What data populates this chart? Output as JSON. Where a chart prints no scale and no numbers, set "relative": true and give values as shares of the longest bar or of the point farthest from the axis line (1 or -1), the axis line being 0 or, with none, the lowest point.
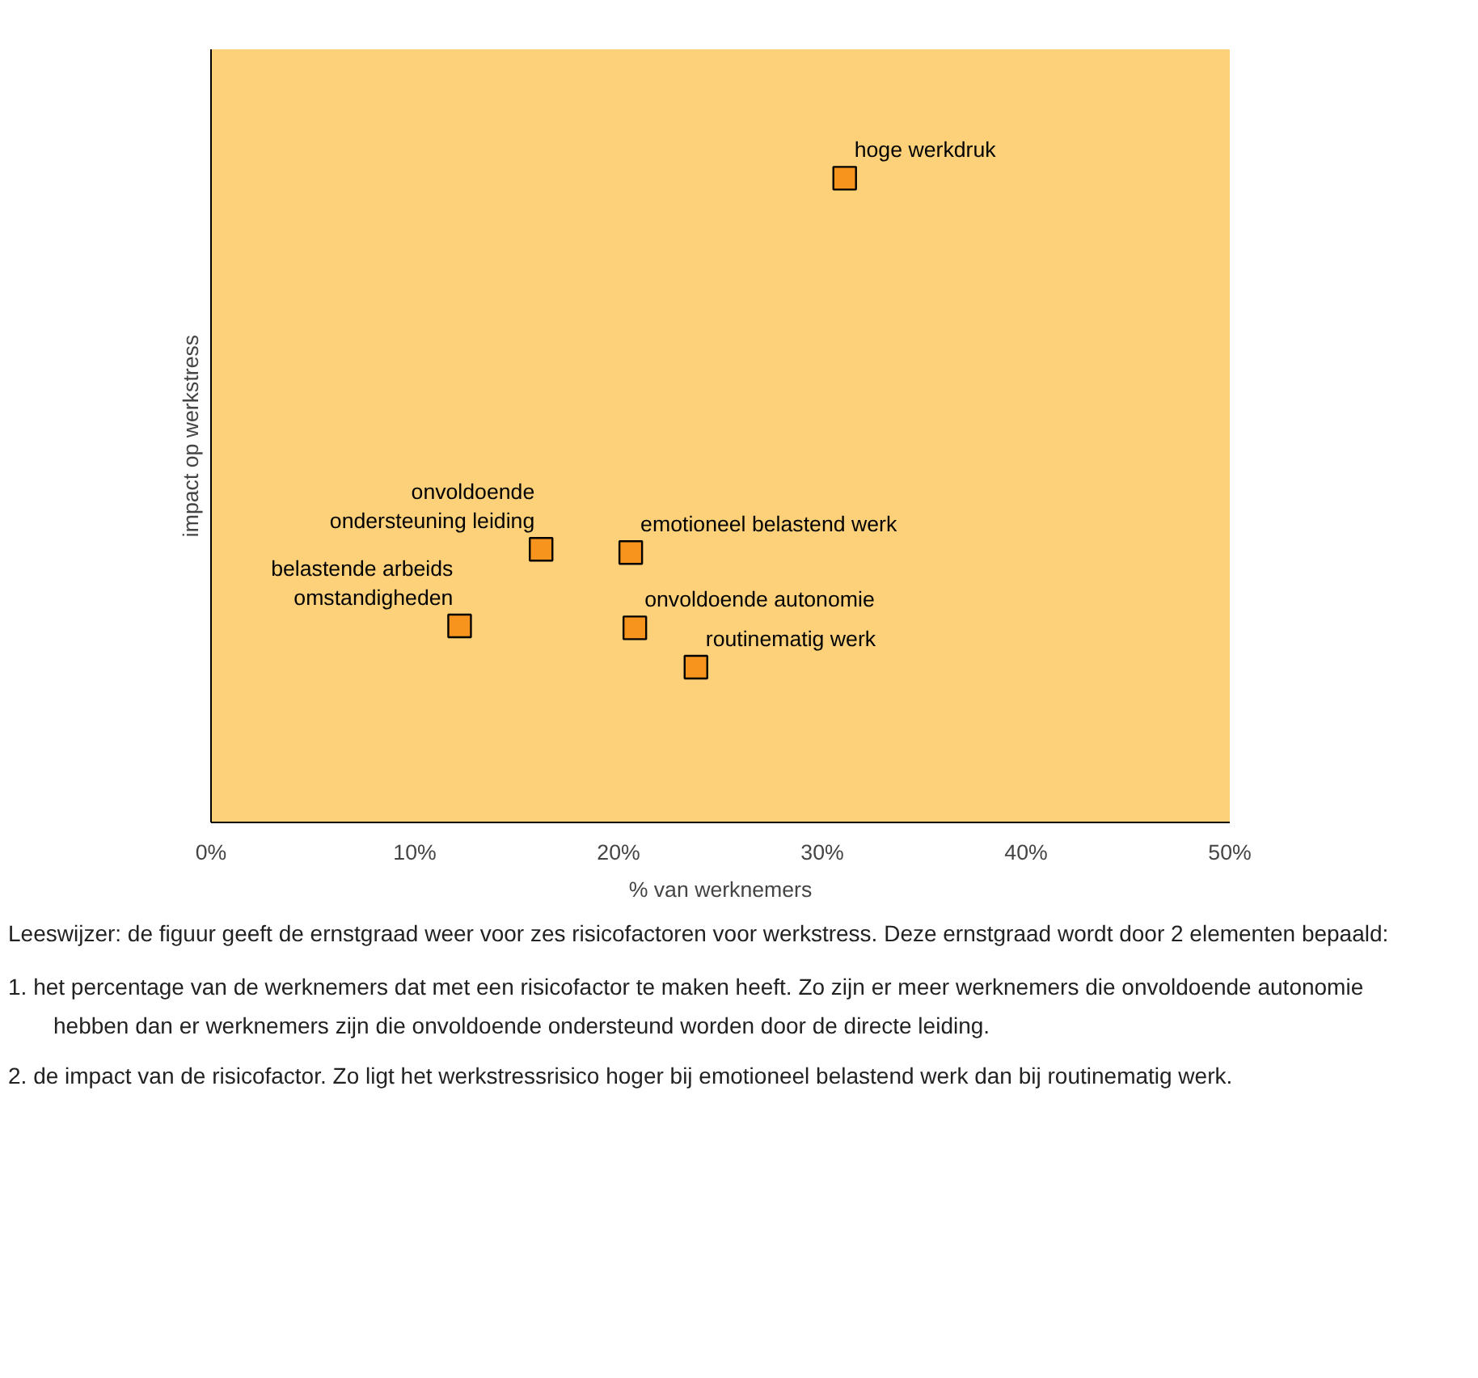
{
  "chart_data": {
    "type": "scatter",
    "relative": true,
    "xlabel": "% van werknemers",
    "ylabel": "impact op werkstress",
    "xlim": [
      0,
      50
    ],
    "xticks": [
      {
        "value": 0,
        "label": "0%"
      },
      {
        "value": 10,
        "label": "10%"
      },
      {
        "value": 20,
        "label": "20%"
      },
      {
        "value": 30,
        "label": "30%"
      },
      {
        "value": 40,
        "label": "40%"
      },
      {
        "value": 50,
        "label": "50%"
      }
    ],
    "x": [
      31.1,
      16.2,
      20.6,
      12.2,
      20.8,
      23.8
    ],
    "series": [
      {
        "color": "#f7941d",
        "values": [
          1.0,
          0.424,
          0.419,
          0.305,
          0.302,
          0.241
        ]
      }
    ],
    "marker": "square",
    "grid": false,
    "annotations": [
      {
        "text": "hoge werkdruk",
        "x": 31.1,
        "y": 1.0
      },
      {
        "text": "onvoldoende\nondersteuning leiding",
        "x": 16.2,
        "y": 0.424
      },
      {
        "text": "emotioneel belastend werk",
        "x": 20.6,
        "y": 0.419
      },
      {
        "text": "belastende arbeids\nomstandigheden",
        "x": 12.2,
        "y": 0.305
      },
      {
        "text": "onvoldoende autonomie",
        "x": 20.8,
        "y": 0.302
      },
      {
        "text": "routinematig werk",
        "x": 23.8,
        "y": 0.241
      },
      "Leeswijzer: de figuur geeft de ernstgraad weer voor zes risicofactoren voor werkstress. Deze ernstgraad wordt door 2 elementen bepaald:",
      "1. het percentage van de werknemers dat met een risicofactor te maken heeft. Zo zijn er meer werknemers die onvoldoende autonomie hebben dan er werknemers zijn die onvoldoende ondersteund worden door de directe leiding.",
      "2. de impact van de risicofactor. Zo ligt het werkstressrisico hoger bij emotioneel belastend werk dan bij routinematig werk."
    ]
  }
}
